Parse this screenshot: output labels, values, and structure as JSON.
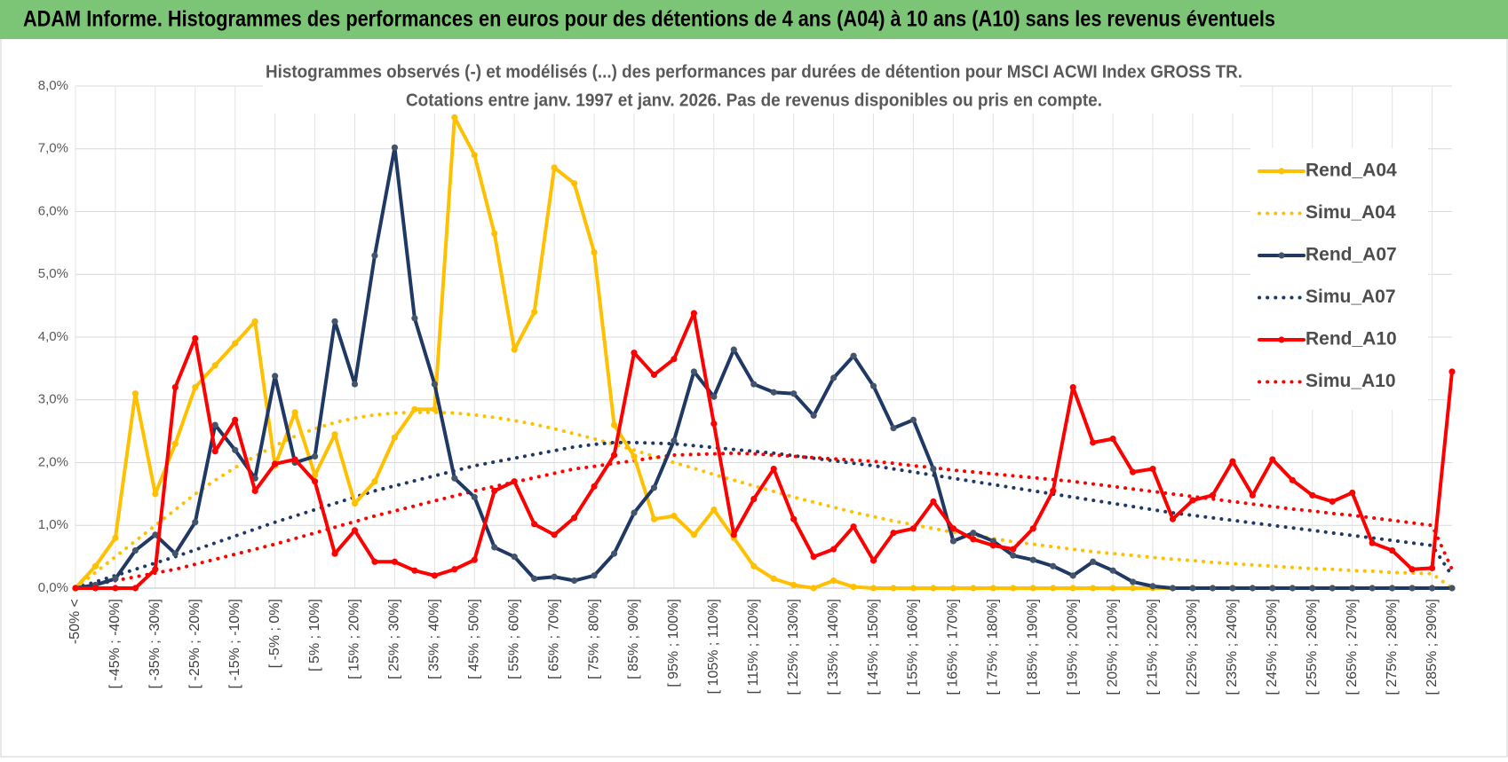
{
  "header": "ADAM Informe. Histogrammes des performances en euros pour des détentions de 4 ans (A04) à 10 ans (A10) sans les revenus éventuels",
  "chart_data": {
    "type": "line",
    "title": "Histogrammes observés (-) et modélisés (...) des performances par durées de détention pour MSCI ACWI Index GROSS TR.",
    "subtitle": "Cotations entre janv. 1997 et janv. 2026. Pas de revenus disponibles ou pris en compte.",
    "categories": [
      "-50% <",
      null,
      "[ -45% ; -40%]",
      null,
      "[ -35% ; -30%]",
      null,
      "[ -25% ; -20%]",
      null,
      "[ -15% ; -10%]",
      null,
      "[ -5% ; 0%]",
      null,
      "[ 5% ; 10%]",
      null,
      "[ 15% ; 20%]",
      null,
      "[ 25% ; 30%]",
      null,
      "[ 35% ; 40%]",
      null,
      "[ 45% ; 50%]",
      null,
      "[ 55% ; 60%]",
      null,
      "[ 65% ; 70%]",
      null,
      "[ 75% ; 80%]",
      null,
      "[ 85% ; 90%]",
      null,
      "[ 95% ; 100%]",
      null,
      "[ 105% ; 110%]",
      null,
      "[ 115% ; 120%]",
      null,
      "[ 125% ; 130%]",
      null,
      "[ 135% ; 140%]",
      null,
      "[ 145% ; 150%]",
      null,
      "[ 155% ; 160%]",
      null,
      "[ 165% ; 170%]",
      null,
      "[ 175% ; 180%]",
      null,
      "[ 185% ; 190%]",
      null,
      "[ 195% ; 200%]",
      null,
      "[ 205% ; 210%]",
      null,
      "[ 215% ; 220%]",
      null,
      "[ 225% ; 230%]",
      null,
      "[ 235% ; 240%]",
      null,
      "[ 245% ; 250%]",
      null,
      "[ 255% ; 260%]",
      null,
      "[ 265% ; 270%]",
      null,
      "[ 275% ; 280%]",
      null,
      "[ 285% ; 290%]",
      null
    ],
    "series": [
      {
        "name": "Rend_A04",
        "color": "#FFC000",
        "style": "solid",
        "values": [
          0,
          0.35,
          0.8,
          3.1,
          1.5,
          2.3,
          3.2,
          3.55,
          3.9,
          4.25,
          1.95,
          2.8,
          1.8,
          2.45,
          1.35,
          1.7,
          2.4,
          2.85,
          2.85,
          7.5,
          6.9,
          5.65,
          3.8,
          4.4,
          6.7,
          6.45,
          5.35,
          2.6,
          2.1,
          1.1,
          1.15,
          0.85,
          1.25,
          0.8,
          0.35,
          0.15,
          0.05,
          0,
          0.12,
          0.02,
          0,
          0,
          0,
          0,
          0,
          0,
          0,
          0,
          0,
          0,
          0,
          0,
          0,
          0,
          0,
          0,
          0,
          0,
          0,
          0,
          0,
          0,
          0,
          0,
          0,
          0,
          0,
          0,
          0,
          0
        ]
      },
      {
        "name": "Simu_A04",
        "color": "#FFC000",
        "style": "dotted",
        "values": [
          0,
          0.25,
          0.5,
          0.75,
          1.0,
          1.25,
          1.5,
          1.72,
          1.92,
          2.1,
          2.27,
          2.42,
          2.54,
          2.64,
          2.71,
          2.76,
          2.79,
          2.8,
          2.8,
          2.79,
          2.76,
          2.72,
          2.67,
          2.61,
          2.54,
          2.46,
          2.38,
          2.29,
          2.2,
          2.1,
          2.0,
          1.91,
          1.81,
          1.72,
          1.63,
          1.54,
          1.45,
          1.37,
          1.29,
          1.21,
          1.14,
          1.07,
          1.01,
          0.95,
          0.89,
          0.84,
          0.79,
          0.74,
          0.7,
          0.66,
          0.62,
          0.58,
          0.55,
          0.52,
          0.49,
          0.46,
          0.44,
          0.41,
          0.39,
          0.37,
          0.35,
          0.33,
          0.31,
          0.3,
          0.28,
          0.27,
          0.25,
          0.24,
          0.23,
          0
        ]
      },
      {
        "name": "Rend_A07",
        "color": "#1F3864",
        "style": "solid",
        "values": [
          0,
          0.05,
          0.15,
          0.6,
          0.85,
          0.55,
          1.05,
          2.6,
          2.2,
          1.75,
          3.38,
          2.0,
          2.1,
          4.25,
          3.25,
          5.3,
          7.02,
          4.3,
          3.25,
          1.75,
          1.45,
          0.65,
          0.5,
          0.15,
          0.18,
          0.12,
          0.2,
          0.55,
          1.2,
          1.6,
          2.35,
          3.45,
          3.05,
          3.8,
          3.25,
          3.12,
          3.1,
          2.75,
          3.35,
          3.7,
          3.22,
          2.55,
          2.68,
          1.9,
          0.75,
          0.88,
          0.75,
          0.52,
          0.45,
          0.35,
          0.2,
          0.42,
          0.28,
          0.1,
          0.03,
          0,
          0,
          0,
          0,
          0,
          0,
          0,
          0,
          0,
          0,
          0,
          0,
          0,
          0,
          0
        ]
      },
      {
        "name": "Simu_A07",
        "color": "#1F3864",
        "style": "dotted",
        "values": [
          0,
          0.1,
          0.2,
          0.3,
          0.4,
          0.5,
          0.61,
          0.72,
          0.83,
          0.94,
          1.05,
          1.15,
          1.25,
          1.35,
          1.45,
          1.55,
          1.63,
          1.71,
          1.79,
          1.87,
          1.95,
          2.01,
          2.07,
          2.13,
          2.19,
          2.25,
          2.29,
          2.32,
          2.32,
          2.31,
          2.3,
          2.27,
          2.24,
          2.21,
          2.18,
          2.15,
          2.11,
          2.07,
          2.03,
          1.99,
          1.95,
          1.9,
          1.85,
          1.8,
          1.75,
          1.7,
          1.65,
          1.6,
          1.55,
          1.5,
          1.45,
          1.4,
          1.35,
          1.3,
          1.25,
          1.2,
          1.16,
          1.12,
          1.08,
          1.04,
          1.0,
          0.96,
          0.92,
          0.88,
          0.84,
          0.8,
          0.76,
          0.72,
          0.68,
          0.2
        ]
      },
      {
        "name": "Rend_A10",
        "color": "#FF0000",
        "style": "solid",
        "values": [
          0,
          0,
          0,
          0,
          0.3,
          3.2,
          3.98,
          2.18,
          2.68,
          1.55,
          1.98,
          2.05,
          1.7,
          0.55,
          0.92,
          0.42,
          0.42,
          0.28,
          0.2,
          0.3,
          0.45,
          1.55,
          1.7,
          1.02,
          0.85,
          1.12,
          1.62,
          2.12,
          3.75,
          3.4,
          3.65,
          4.38,
          2.62,
          0.85,
          1.42,
          1.9,
          1.1,
          0.5,
          0.62,
          0.98,
          0.44,
          0.88,
          0.95,
          1.38,
          0.95,
          0.78,
          0.68,
          0.62,
          0.95,
          1.55,
          3.2,
          2.32,
          2.38,
          1.85,
          1.9,
          1.1,
          1.4,
          1.48,
          2.02,
          1.48,
          2.05,
          1.72,
          1.48,
          1.38,
          1.52,
          0.72,
          0.6,
          0.3,
          0.32,
          3.45
        ]
      },
      {
        "name": "Simu_A10",
        "color": "#FF0000",
        "style": "dotted",
        "values": [
          0,
          0.06,
          0.12,
          0.18,
          0.24,
          0.3,
          0.38,
          0.46,
          0.54,
          0.62,
          0.7,
          0.79,
          0.88,
          0.97,
          1.06,
          1.15,
          1.23,
          1.31,
          1.39,
          1.47,
          1.55,
          1.62,
          1.69,
          1.76,
          1.83,
          1.9,
          1.94,
          1.99,
          2.03,
          2.08,
          2.12,
          2.13,
          2.14,
          2.15,
          2.14,
          2.12,
          2.1,
          2.08,
          2.06,
          2.04,
          2.02,
          1.99,
          1.95,
          1.92,
          1.88,
          1.85,
          1.82,
          1.79,
          1.76,
          1.73,
          1.7,
          1.66,
          1.62,
          1.58,
          1.54,
          1.5,
          1.46,
          1.42,
          1.38,
          1.34,
          1.3,
          1.26,
          1.23,
          1.19,
          1.16,
          1.12,
          1.08,
          1.04,
          1.0,
          0.3
        ]
      }
    ],
    "ylim": [
      0,
      8
    ],
    "yticks": [
      {
        "value": 0,
        "label": "0,0%"
      },
      {
        "value": 1,
        "label": "1,0%"
      },
      {
        "value": 2,
        "label": "2,0%"
      },
      {
        "value": 3,
        "label": "3,0%"
      },
      {
        "value": 4,
        "label": "4,0%"
      },
      {
        "value": 5,
        "label": "5,0%"
      },
      {
        "value": 6,
        "label": "6,0%"
      },
      {
        "value": 7,
        "label": "7,0%"
      },
      {
        "value": 8,
        "label": "8,0%"
      }
    ],
    "grid": true,
    "legend": "right"
  }
}
